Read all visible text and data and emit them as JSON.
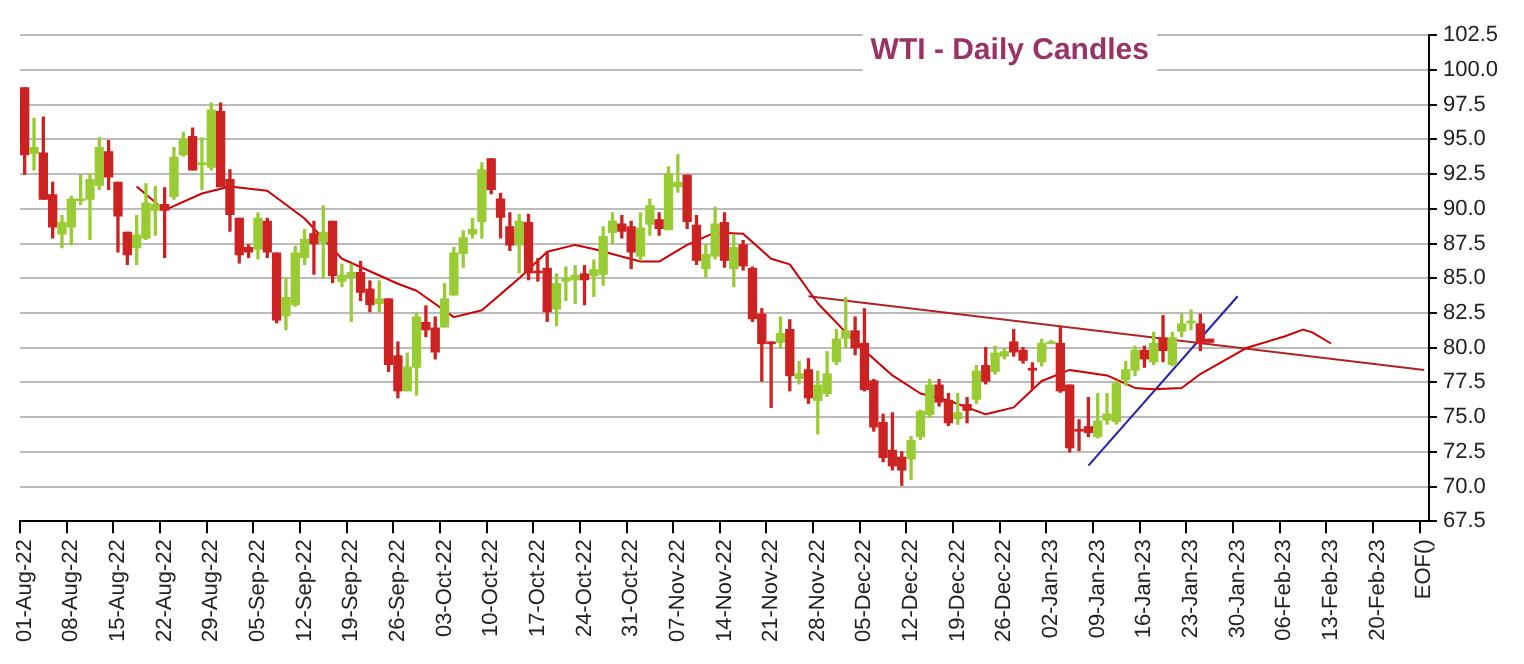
{
  "chart_data": {
    "type": "candlestick",
    "title": "WTI - Daily Candles",
    "categories": [
      "01-Aug-22",
      null,
      null,
      null,
      null,
      "08-Aug-22",
      null,
      null,
      null,
      null,
      "15-Aug-22",
      null,
      null,
      null,
      null,
      "22-Aug-22",
      null,
      null,
      null,
      null,
      "29-Aug-22",
      null,
      null,
      null,
      null,
      "05-Sep-22",
      null,
      null,
      null,
      null,
      "12-Sep-22",
      null,
      null,
      null,
      null,
      "19-Sep-22",
      null,
      null,
      null,
      null,
      "26-Sep-22",
      null,
      null,
      null,
      null,
      "03-Oct-22",
      null,
      null,
      null,
      null,
      "10-Oct-22",
      null,
      null,
      null,
      null,
      "17-Oct-22",
      null,
      null,
      null,
      null,
      "24-Oct-22",
      null,
      null,
      null,
      null,
      "31-Oct-22",
      null,
      null,
      null,
      null,
      "07-Nov-22",
      null,
      null,
      null,
      null,
      "14-Nov-22",
      null,
      null,
      null,
      null,
      "21-Nov-22",
      null,
      null,
      null,
      null,
      "28-Nov-22",
      null,
      null,
      null,
      null,
      "05-Dec-22",
      null,
      null,
      null,
      null,
      "12-Dec-22",
      null,
      null,
      null,
      null,
      "19-Dec-22",
      null,
      null,
      null,
      null,
      "26-Dec-22",
      null,
      null,
      null,
      null,
      "02-Jan-23",
      null,
      null,
      null,
      null,
      "09-Jan-23",
      null,
      null,
      null,
      null,
      "16-Jan-23",
      null,
      null,
      null,
      null,
      "23-Jan-23",
      null,
      null,
      null,
      null,
      "30-Jan-23",
      null,
      null,
      null,
      null,
      "06-Feb-23",
      null,
      null,
      null,
      null,
      "13-Feb-23",
      null,
      null,
      null,
      null,
      "20-Feb-23",
      null,
      null,
      null,
      null,
      "EOF()"
    ],
    "ohlc": [
      [
        98.7,
        98.7,
        92.5,
        93.9
      ],
      [
        94.0,
        96.5,
        92.8,
        94.4
      ],
      [
        94.0,
        96.6,
        90.7,
        90.7
      ],
      [
        91.0,
        91.9,
        87.9,
        88.7
      ],
      [
        88.2,
        89.5,
        87.2,
        89.0
      ],
      [
        88.7,
        90.9,
        87.4,
        90.7
      ],
      [
        90.6,
        92.4,
        90.3,
        90.7
      ],
      [
        90.7,
        92.5,
        87.8,
        92.1
      ],
      [
        91.7,
        95.1,
        91.4,
        94.4
      ],
      [
        94.1,
        94.9,
        91.4,
        92.3
      ],
      [
        91.9,
        91.9,
        86.9,
        89.5
      ],
      [
        88.3,
        88.3,
        86.0,
        86.7
      ],
      [
        87.2,
        89.5,
        86.0,
        88.1
      ],
      [
        87.9,
        91.8,
        87.8,
        90.4
      ],
      [
        89.9,
        91.6,
        88.1,
        90.3
      ],
      [
        90.3,
        91.5,
        86.5,
        89.9
      ],
      [
        90.9,
        94.4,
        90.7,
        93.7
      ],
      [
        93.9,
        95.5,
        93.8,
        95.0
      ],
      [
        95.2,
        95.8,
        92.8,
        92.8
      ],
      [
        93.2,
        95.1,
        91.4,
        93.3
      ],
      [
        93.0,
        97.6,
        92.8,
        97.1
      ],
      [
        97.0,
        97.6,
        91.6,
        91.6
      ],
      [
        92.1,
        92.8,
        88.4,
        89.6
      ],
      [
        89.3,
        89.3,
        86.1,
        86.7
      ],
      [
        87.2,
        87.4,
        86.5,
        86.9
      ],
      [
        87.1,
        89.7,
        86.4,
        89.3
      ],
      [
        89.1,
        89.3,
        86.5,
        86.9
      ],
      [
        86.8,
        86.8,
        81.8,
        82.0
      ],
      [
        82.3,
        85.0,
        81.3,
        83.6
      ],
      [
        83.1,
        87.3,
        83.0,
        86.8
      ],
      [
        86.5,
        88.5,
        86.0,
        87.8
      ],
      [
        88.2,
        89.1,
        85.3,
        87.5
      ],
      [
        87.6,
        90.2,
        85.0,
        88.3
      ],
      [
        89.1,
        89.1,
        84.7,
        85.2
      ],
      [
        84.8,
        86.0,
        84.4,
        85.2
      ],
      [
        85.1,
        86.0,
        81.9,
        85.4
      ],
      [
        85.4,
        86.2,
        83.4,
        84.0
      ],
      [
        84.2,
        84.8,
        82.6,
        83.1
      ],
      [
        83.2,
        84.8,
        82.6,
        83.5
      ],
      [
        83.5,
        83.5,
        78.3,
        78.8
      ],
      [
        79.4,
        80.4,
        76.4,
        76.9
      ],
      [
        76.9,
        79.6,
        76.9,
        78.6
      ],
      [
        78.6,
        82.5,
        76.6,
        82.2
      ],
      [
        81.8,
        83.0,
        80.8,
        81.3
      ],
      [
        81.4,
        82.2,
        79.2,
        79.7
      ],
      [
        81.5,
        84.6,
        81.5,
        83.5
      ],
      [
        83.8,
        87.2,
        83.8,
        86.8
      ],
      [
        86.8,
        88.4,
        85.8,
        87.9
      ],
      [
        88.2,
        89.3,
        87.9,
        88.5
      ],
      [
        89.1,
        93.3,
        87.9,
        92.8
      ],
      [
        93.6,
        93.6,
        91.1,
        91.4
      ],
      [
        90.7,
        91.1,
        87.9,
        89.4
      ],
      [
        88.7,
        89.7,
        87.0,
        87.4
      ],
      [
        87.4,
        89.6,
        85.4,
        89.1
      ],
      [
        89.0,
        89.6,
        84.9,
        85.4
      ],
      [
        85.5,
        86.4,
        84.8,
        85.4
      ],
      [
        85.7,
        86.9,
        81.9,
        82.6
      ],
      [
        82.8,
        85.3,
        81.6,
        84.6
      ],
      [
        84.8,
        85.8,
        83.4,
        85.0
      ],
      [
        84.9,
        85.9,
        83.2,
        85.2
      ],
      [
        85.3,
        85.9,
        83.1,
        84.9
      ],
      [
        85.2,
        86.3,
        83.7,
        85.6
      ],
      [
        85.3,
        88.7,
        84.5,
        88.0
      ],
      [
        88.3,
        89.7,
        87.5,
        89.1
      ],
      [
        88.9,
        89.5,
        87.9,
        88.4
      ],
      [
        88.7,
        89.1,
        85.7,
        86.9
      ],
      [
        86.6,
        89.7,
        86.3,
        88.6
      ],
      [
        88.9,
        90.7,
        88.1,
        90.2
      ],
      [
        89.2,
        89.7,
        88.1,
        88.6
      ],
      [
        88.5,
        93.0,
        88.5,
        92.5
      ],
      [
        91.6,
        93.9,
        91.2,
        91.9
      ],
      [
        92.4,
        92.4,
        88.6,
        89.1
      ],
      [
        88.8,
        89.5,
        86.0,
        86.3
      ],
      [
        85.7,
        87.4,
        85.1,
        86.7
      ],
      [
        86.6,
        90.1,
        86.4,
        88.9
      ],
      [
        89.0,
        89.7,
        85.8,
        86.3
      ],
      [
        85.7,
        88.1,
        84.4,
        87.2
      ],
      [
        87.4,
        87.7,
        85.6,
        85.9
      ],
      [
        85.7,
        85.8,
        81.9,
        82.1
      ],
      [
        82.4,
        82.8,
        77.6,
        80.3
      ],
      [
        80.4,
        80.4,
        75.7,
        80.3
      ],
      [
        80.4,
        82.2,
        80.0,
        81.0
      ],
      [
        81.3,
        82.0,
        76.9,
        78.0
      ],
      [
        77.8,
        79.0,
        77.4,
        78.1
      ],
      [
        78.4,
        79.2,
        76.0,
        76.4
      ],
      [
        76.2,
        78.3,
        73.8,
        77.3
      ],
      [
        76.7,
        79.7,
        76.5,
        78.1
      ],
      [
        79.0,
        81.3,
        78.8,
        80.6
      ],
      [
        80.7,
        83.6,
        80.0,
        81.2
      ],
      [
        81.2,
        82.2,
        79.5,
        80.0
      ],
      [
        80.3,
        82.8,
        76.9,
        77.0
      ],
      [
        77.6,
        77.7,
        74.0,
        74.3
      ],
      [
        74.6,
        75.2,
        71.8,
        72.1
      ],
      [
        72.6,
        75.3,
        71.2,
        71.5
      ],
      [
        72.1,
        72.5,
        70.1,
        71.2
      ],
      [
        72.0,
        73.6,
        70.5,
        73.3
      ],
      [
        73.6,
        75.5,
        73.4,
        75.4
      ],
      [
        75.2,
        77.7,
        75.0,
        77.3
      ],
      [
        77.3,
        77.7,
        75.8,
        76.1
      ],
      [
        76.2,
        76.7,
        74.4,
        74.6
      ],
      [
        74.9,
        76.7,
        74.5,
        75.3
      ],
      [
        75.9,
        76.4,
        74.6,
        75.5
      ],
      [
        76.3,
        78.7,
        76.0,
        78.3
      ],
      [
        78.7,
        80.0,
        77.4,
        77.6
      ],
      [
        78.3,
        80.1,
        78.1,
        79.6
      ],
      [
        79.4,
        79.9,
        79.2,
        79.7
      ],
      [
        80.4,
        81.3,
        79.4,
        79.7
      ],
      [
        79.8,
        80.0,
        78.9,
        79.1
      ],
      [
        78.5,
        78.9,
        77.0,
        78.4
      ],
      [
        79.0,
        80.6,
        78.7,
        80.3
      ],
      [
        80.3,
        80.5,
        80.3,
        80.4
      ],
      [
        80.3,
        81.5,
        76.8,
        76.9
      ],
      [
        77.3,
        77.3,
        72.5,
        72.8
      ],
      [
        74.1,
        74.8,
        72.6,
        74.0
      ],
      [
        74.3,
        76.4,
        73.6,
        73.9
      ],
      [
        73.6,
        76.7,
        73.5,
        74.7
      ],
      [
        74.8,
        76.7,
        74.5,
        75.2
      ],
      [
        74.7,
        77.6,
        74.5,
        77.4
      ],
      [
        77.7,
        79.0,
        77.3,
        78.4
      ],
      [
        78.4,
        80.1,
        78.0,
        79.8
      ],
      [
        79.8,
        80.1,
        78.6,
        79.2
      ],
      [
        79.0,
        81.1,
        78.8,
        80.3
      ],
      [
        80.7,
        82.3,
        79.0,
        79.8
      ],
      [
        78.8,
        81.1,
        78.7,
        80.7
      ],
      [
        81.2,
        82.4,
        80.8,
        81.7
      ],
      [
        81.8,
        82.7,
        81.3,
        81.9
      ],
      [
        81.7,
        82.4,
        79.8,
        80.3
      ],
      [
        80.6,
        80.6,
        80.4,
        80.4
      ],
      null,
      null,
      null,
      null,
      null,
      null,
      null,
      null,
      null,
      null,
      null,
      null,
      null,
      null,
      null,
      null,
      null,
      null,
      null,
      null,
      null,
      null,
      null
    ],
    "colors": [
      "#cc2222",
      "#99cc33",
      "#cc2222",
      "#cc2222",
      "#99cc33",
      "#99cc33",
      "#99cc33",
      "#99cc33",
      "#99cc33",
      "#cc2222",
      "#cc2222",
      "#cc2222",
      "#99cc33",
      "#99cc33",
      "#99cc33",
      "#cc2222",
      "#99cc33",
      "#99cc33",
      "#cc2222",
      "#99cc33",
      "#99cc33",
      "#cc2222",
      "#cc2222",
      "#cc2222",
      "#cc2222",
      "#99cc33",
      "#cc2222",
      "#cc2222",
      "#99cc33",
      "#99cc33",
      "#99cc33",
      "#cc2222",
      "#99cc33",
      "#cc2222",
      "#99cc33",
      "#99cc33",
      "#cc2222",
      "#cc2222",
      "#99cc33",
      "#cc2222",
      "#cc2222",
      "#99cc33",
      "#99cc33",
      "#cc2222",
      "#cc2222",
      "#99cc33",
      "#99cc33",
      "#99cc33",
      "#99cc33",
      "#99cc33",
      "#cc2222",
      "#cc2222",
      "#cc2222",
      "#99cc33",
      "#cc2222",
      "#cc2222",
      "#cc2222",
      "#99cc33",
      "#99cc33",
      "#99cc33",
      "#cc2222",
      "#99cc33",
      "#99cc33",
      "#99cc33",
      "#cc2222",
      "#cc2222",
      "#99cc33",
      "#99cc33",
      "#cc2222",
      "#99cc33",
      "#99cc33",
      "#cc2222",
      "#cc2222",
      "#99cc33",
      "#99cc33",
      "#cc2222",
      "#99cc33",
      "#cc2222",
      "#cc2222",
      "#cc2222",
      "#cc2222",
      "#99cc33",
      "#cc2222",
      "#99cc33",
      "#cc2222",
      "#99cc33",
      "#99cc33",
      "#99cc33",
      "#99cc33",
      "#cc2222",
      "#cc2222",
      "#cc2222",
      "#cc2222",
      "#cc2222",
      "#cc2222",
      "#99cc33",
      "#99cc33",
      "#99cc33",
      "#cc2222",
      "#cc2222",
      "#99cc33",
      "#cc2222",
      "#99cc33",
      "#cc2222",
      "#99cc33",
      "#99cc33",
      "#cc2222",
      "#cc2222",
      "#cc2222",
      "#99cc33",
      "#99cc33",
      "#cc2222",
      "#cc2222",
      "#cc2222",
      "#cc2222",
      "#99cc33",
      "#99cc33",
      "#99cc33",
      "#99cc33",
      "#99cc33",
      "#cc2222",
      "#99cc33",
      "#cc2222",
      "#99cc33",
      "#99cc33",
      "#99cc33",
      "#cc2222",
      "#cc2222",
      null,
      null,
      null,
      null,
      null,
      null,
      null,
      null,
      null,
      null,
      null,
      null,
      null,
      null,
      null,
      null,
      null,
      null,
      null,
      null,
      null,
      null,
      null
    ],
    "series": [
      {
        "type": "line",
        "color": "#cc0000",
        "values": [
          null,
          null,
          null,
          null,
          null,
          null,
          null,
          null,
          null,
          null,
          null,
          null,
          91.6,
          null,
          null,
          89.9,
          null,
          null,
          null,
          91.1,
          null,
          null,
          91.6,
          null,
          null,
          null,
          91.3,
          null,
          null,
          null,
          89.3,
          null,
          null,
          null,
          86.4,
          null,
          null,
          null,
          null,
          null,
          84.6,
          null,
          84.1,
          null,
          null,
          null,
          82.2,
          null,
          null,
          82.7,
          null,
          null,
          null,
          85.0,
          null,
          null,
          86.9,
          null,
          null,
          87.4,
          null,
          87.1,
          null,
          null,
          null,
          null,
          86.2,
          null,
          86.2,
          null,
          null,
          87.4,
          null,
          null,
          88.3,
          null,
          null,
          88.2,
          null,
          null,
          86.4,
          null,
          86.0,
          null,
          null,
          83.2,
          null,
          null,
          81.1,
          null,
          79.8,
          null,
          null,
          78.0,
          null,
          null,
          76.7,
          null,
          null,
          76.2,
          null,
          null,
          null,
          75.2,
          null,
          null,
          75.7,
          null,
          null,
          77.6,
          null,
          null,
          78.4,
          null,
          null,
          null,
          78.0,
          null,
          null,
          77.1,
          null,
          77.0,
          null,
          null,
          77.1,
          null,
          78.1,
          null,
          null,
          null,
          null,
          80.0,
          null,
          null,
          null,
          80.8,
          null,
          81.3,
          81.1,
          null,
          80.3,
          null,
          null,
          null,
          null,
          null,
          null,
          null,
          null,
          null,
          null
        ]
      },
      {
        "type": "line",
        "color": "#b22222",
        "values": [
          null,
          null,
          null,
          null,
          null,
          null,
          null,
          null,
          null,
          null,
          null,
          null,
          null,
          null,
          null,
          null,
          null,
          null,
          null,
          null,
          null,
          null,
          null,
          null,
          null,
          null,
          null,
          null,
          null,
          null,
          null,
          null,
          null,
          null,
          null,
          null,
          null,
          null,
          null,
          null,
          null,
          null,
          null,
          null,
          null,
          null,
          null,
          null,
          null,
          null,
          null,
          null,
          null,
          null,
          null,
          null,
          null,
          null,
          null,
          null,
          null,
          null,
          null,
          null,
          null,
          null,
          null,
          null,
          null,
          null,
          null,
          null,
          null,
          null,
          null,
          null,
          null,
          null,
          null,
          null,
          null,
          null,
          null,
          null,
          83.7,
          null,
          null,
          null,
          null,
          null,
          null,
          null,
          null,
          null,
          null,
          null,
          null,
          null,
          null,
          null,
          null,
          null,
          null,
          null,
          null,
          null,
          null,
          null,
          null,
          null,
          null,
          null,
          null,
          null,
          null,
          null,
          null,
          null,
          null,
          null,
          null,
          null,
          null,
          null,
          null,
          null,
          null,
          null,
          null,
          null,
          null,
          null,
          null,
          null,
          null,
          null,
          null,
          null,
          null,
          null,
          null,
          null,
          null,
          null,
          null,
          null,
          null,
          null,
          null,
          null,
          78.4
        ]
      },
      {
        "type": "line",
        "color": "#2222aa",
        "values": [
          null,
          null,
          null,
          null,
          null,
          null,
          null,
          null,
          null,
          null,
          null,
          null,
          null,
          null,
          null,
          null,
          null,
          null,
          null,
          null,
          null,
          null,
          null,
          null,
          null,
          null,
          null,
          null,
          null,
          null,
          null,
          null,
          null,
          null,
          null,
          null,
          null,
          null,
          null,
          null,
          null,
          null,
          null,
          null,
          null,
          null,
          null,
          null,
          null,
          null,
          null,
          null,
          null,
          null,
          null,
          null,
          null,
          null,
          null,
          null,
          null,
          null,
          null,
          null,
          null,
          null,
          null,
          null,
          null,
          null,
          null,
          null,
          null,
          null,
          null,
          null,
          null,
          null,
          null,
          null,
          null,
          null,
          null,
          null,
          null,
          null,
          null,
          null,
          null,
          null,
          null,
          null,
          null,
          null,
          null,
          null,
          null,
          null,
          null,
          null,
          null,
          null,
          null,
          null,
          null,
          null,
          null,
          null,
          null,
          null,
          null,
          null,
          null,
          null,
          71.5,
          null,
          null,
          null,
          null,
          null,
          null,
          null,
          null,
          null,
          null,
          null,
          null,
          null,
          null,
          null,
          83.7,
          null,
          null,
          null,
          null,
          null,
          null,
          null,
          null,
          null,
          null,
          null,
          null,
          null,
          null,
          null,
          null,
          null,
          null,
          null,
          null
        ]
      }
    ],
    "ylim": [
      67.5,
      102.5
    ],
    "yticks": [
      {
        "value": 67.5,
        "label": "67.5"
      },
      {
        "value": 70,
        "label": "70.0"
      },
      {
        "value": 72.5,
        "label": "72.5"
      },
      {
        "value": 75,
        "label": "75.0"
      },
      {
        "value": 77.5,
        "label": "77.5"
      },
      {
        "value": 80,
        "label": "80.0"
      },
      {
        "value": 82.5,
        "label": "82.5"
      },
      {
        "value": 85,
        "label": "85.0"
      },
      {
        "value": 87.5,
        "label": "87.5"
      },
      {
        "value": 90,
        "label": "90.0"
      },
      {
        "value": 92.5,
        "label": "92.5"
      },
      {
        "value": 95,
        "label": "95.0"
      },
      {
        "value": 97.5,
        "label": "97.5"
      },
      {
        "value": 100,
        "label": "100.0"
      },
      {
        "value": 102.5,
        "label": "102.5"
      }
    ],
    "grid": "y",
    "legend": false
  }
}
